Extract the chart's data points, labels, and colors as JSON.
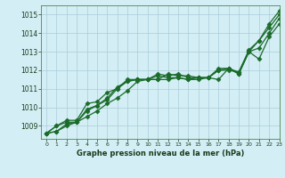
{
  "xlabel": "Graphe pression niveau de la mer (hPa)",
  "xlim": [
    -0.5,
    23
  ],
  "ylim": [
    1008.3,
    1015.5
  ],
  "yticks": [
    1009,
    1010,
    1011,
    1012,
    1013,
    1014,
    1015
  ],
  "xticks": [
    0,
    1,
    2,
    3,
    4,
    5,
    6,
    7,
    8,
    9,
    10,
    11,
    12,
    13,
    14,
    15,
    16,
    17,
    18,
    19,
    20,
    21,
    22,
    23
  ],
  "background_color": "#d4eef5",
  "grid_color": "#aaccd8",
  "line_color": "#1a6b2a",
  "marker": "D",
  "markersize": 2.5,
  "linewidth": 0.9,
  "series": [
    [
      1008.6,
      1008.7,
      1009.1,
      1009.2,
      1009.5,
      1009.8,
      1010.2,
      1010.5,
      1010.9,
      1011.4,
      1011.5,
      1011.5,
      1011.8,
      1011.7,
      1011.7,
      1011.6,
      1011.6,
      1011.5,
      1012.1,
      1011.8,
      1013.0,
      1012.6,
      1013.8,
      1014.5
    ],
    [
      1008.6,
      1008.7,
      1009.0,
      1009.2,
      1009.8,
      1010.1,
      1010.5,
      1011.1,
      1011.4,
      1011.5,
      1011.5,
      1011.7,
      1011.6,
      1011.6,
      1011.5,
      1011.6,
      1011.6,
      1012.0,
      1012.1,
      1011.9,
      1013.1,
      1013.6,
      1014.5,
      1015.2
    ],
    [
      1008.6,
      1009.0,
      1009.2,
      1009.2,
      1009.9,
      1010.1,
      1010.4,
      1011.0,
      1011.4,
      1011.5,
      1011.5,
      1011.5,
      1011.5,
      1011.6,
      1011.5,
      1011.5,
      1011.6,
      1012.1,
      1012.1,
      1011.8,
      1013.0,
      1013.6,
      1014.3,
      1015.0
    ],
    [
      1008.6,
      1009.0,
      1009.3,
      1009.3,
      1010.2,
      1010.3,
      1010.8,
      1011.0,
      1011.5,
      1011.5,
      1011.5,
      1011.8,
      1011.7,
      1011.8,
      1011.6,
      1011.6,
      1011.6,
      1012.0,
      1012.0,
      1011.9,
      1013.0,
      1013.2,
      1014.0,
      1014.8
    ]
  ]
}
